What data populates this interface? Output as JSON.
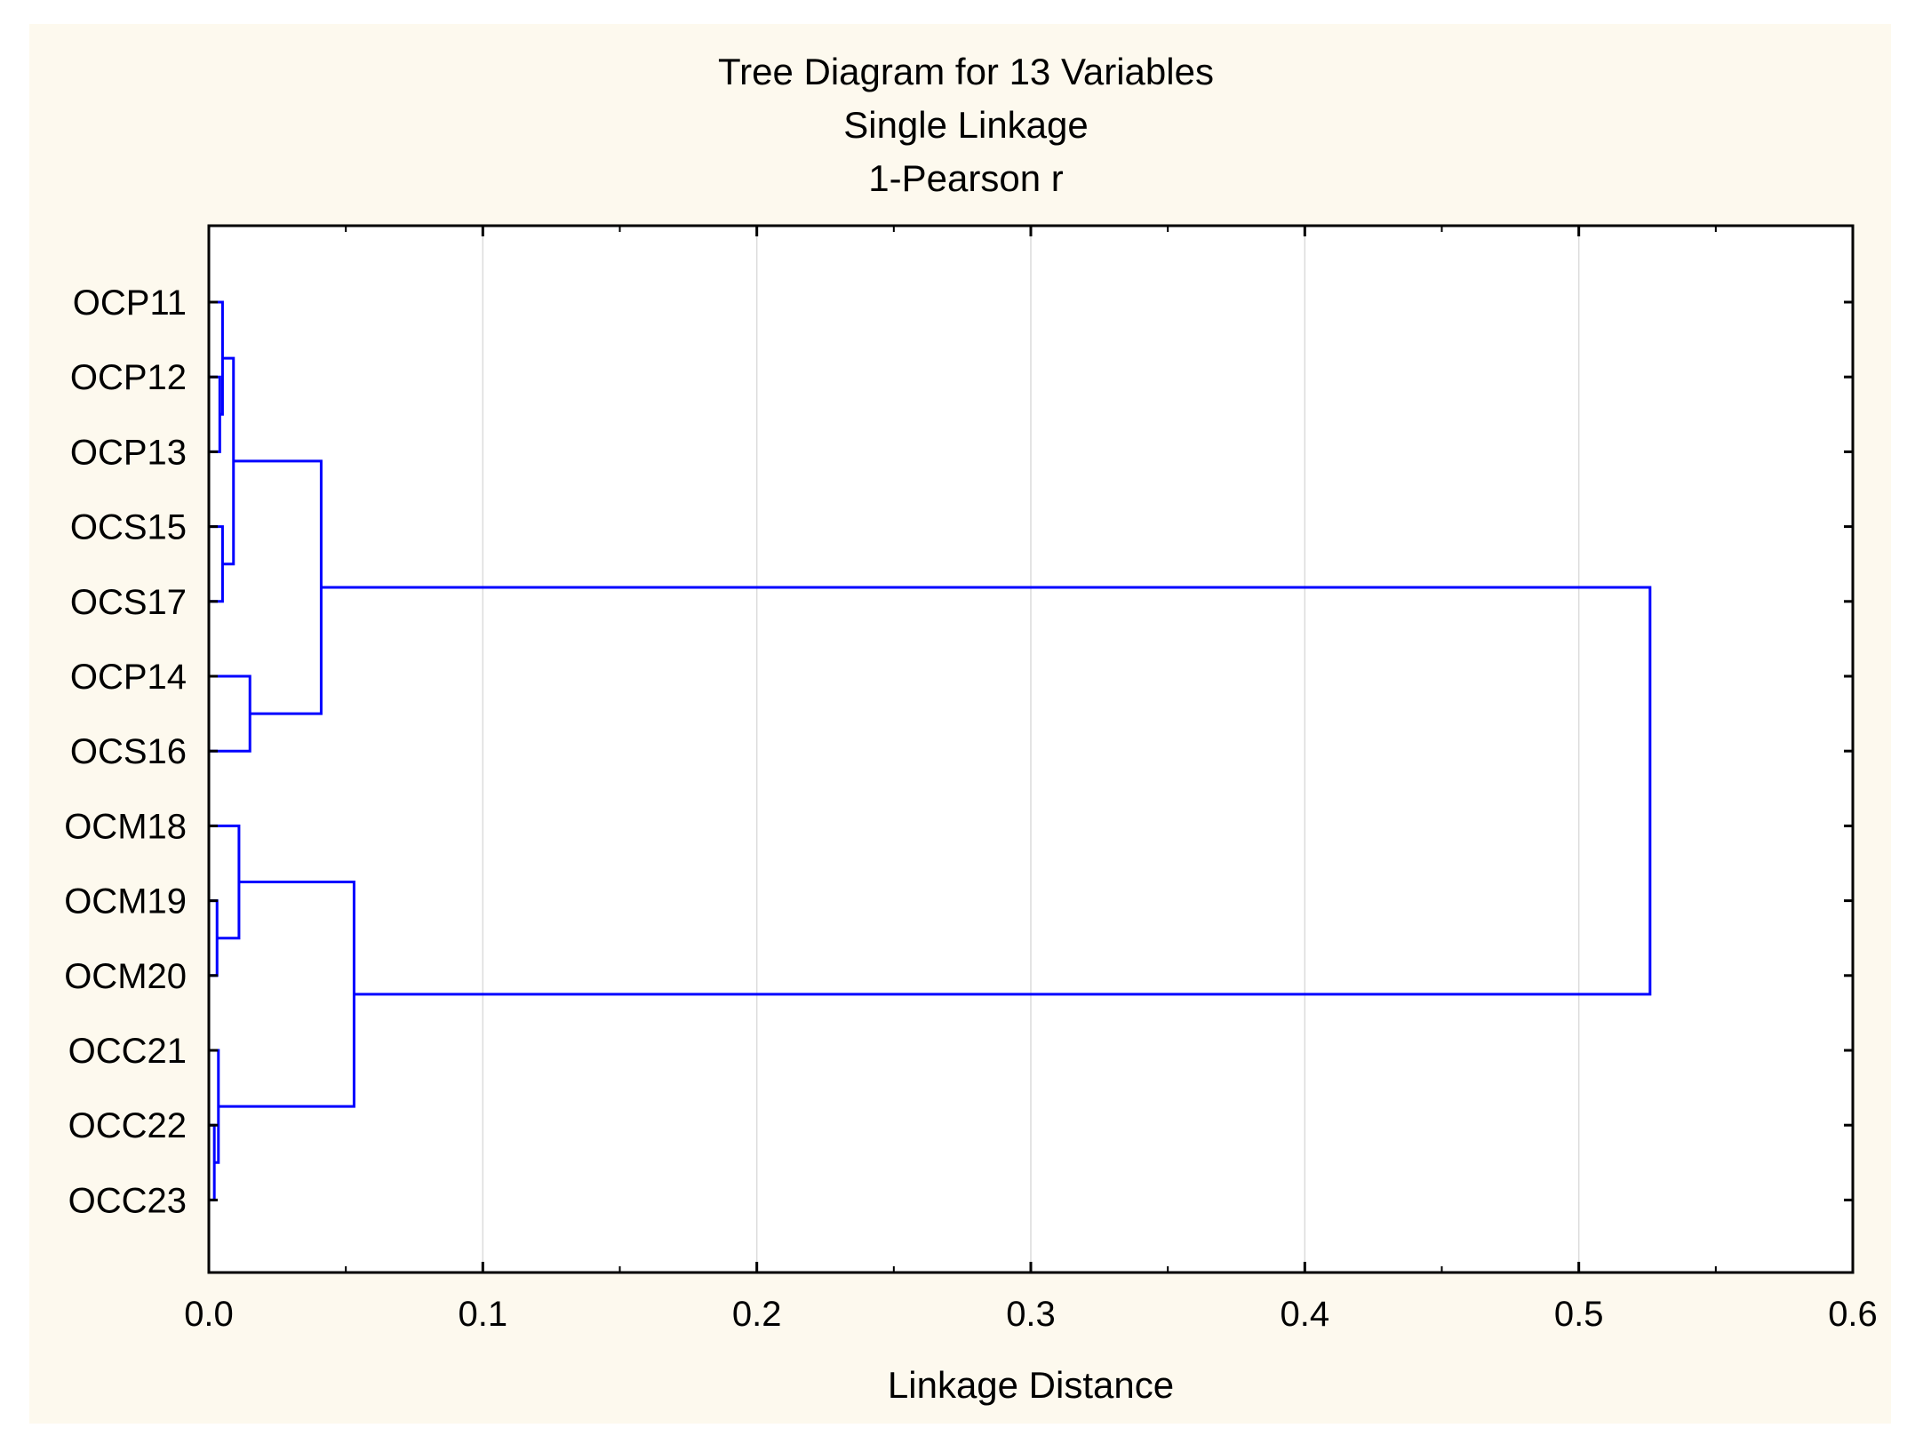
{
  "chart_data": {
    "type": "dendrogram",
    "title": "Tree Diagram for 13  Variables",
    "subtitle_lines": [
      "Single Linkage",
      "1-Pearson r"
    ],
    "xlabel": "Linkage Distance",
    "xlim": [
      0.0,
      0.6
    ],
    "x_ticks": [
      "0.0",
      "0.1",
      "0.2",
      "0.3",
      "0.4",
      "0.5",
      "0.6"
    ],
    "x_tick_values": [
      0.0,
      0.1,
      0.2,
      0.3,
      0.4,
      0.5,
      0.6
    ],
    "minor_ticks": true,
    "grid": "vertical",
    "leaves": [
      "OCP11",
      "OCP12",
      "OCP13",
      "OCS15",
      "OCS17",
      "OCP14",
      "OCS16",
      "OCM18",
      "OCM19",
      "OCM20",
      "OCC21",
      "OCC22",
      "OCC23"
    ],
    "merges": [
      {
        "left": "OCC22",
        "right": "OCC23",
        "distance": 0.002
      },
      {
        "left": "OCM19",
        "right": "OCM20",
        "distance": 0.003
      },
      {
        "left": "OCP12",
        "right": "OCP13",
        "distance": 0.004
      },
      {
        "left": "OCP11",
        "right": "m3",
        "distance": 0.005
      },
      {
        "left": "OCS15",
        "right": "OCS17",
        "distance": 0.005
      },
      {
        "left": "OCC21",
        "right": "m1",
        "distance": 0.0035
      },
      {
        "left": "m4",
        "right": "m5",
        "distance": 0.009
      },
      {
        "left": "OCM18",
        "right": "m2",
        "distance": 0.011
      },
      {
        "left": "OCP14",
        "right": "OCS16",
        "distance": 0.015
      },
      {
        "left": "m7",
        "right": "m9",
        "distance": 0.041
      },
      {
        "left": "m8",
        "right": "m6",
        "distance": 0.053
      },
      {
        "left": "m10",
        "right": "m11",
        "distance": 0.526
      }
    ],
    "colors": {
      "background": "#fdf9ee",
      "plot_area": "#ffffff",
      "tree": "#0000ff",
      "grid": "#dcdcdc",
      "axis": "#000000"
    }
  }
}
